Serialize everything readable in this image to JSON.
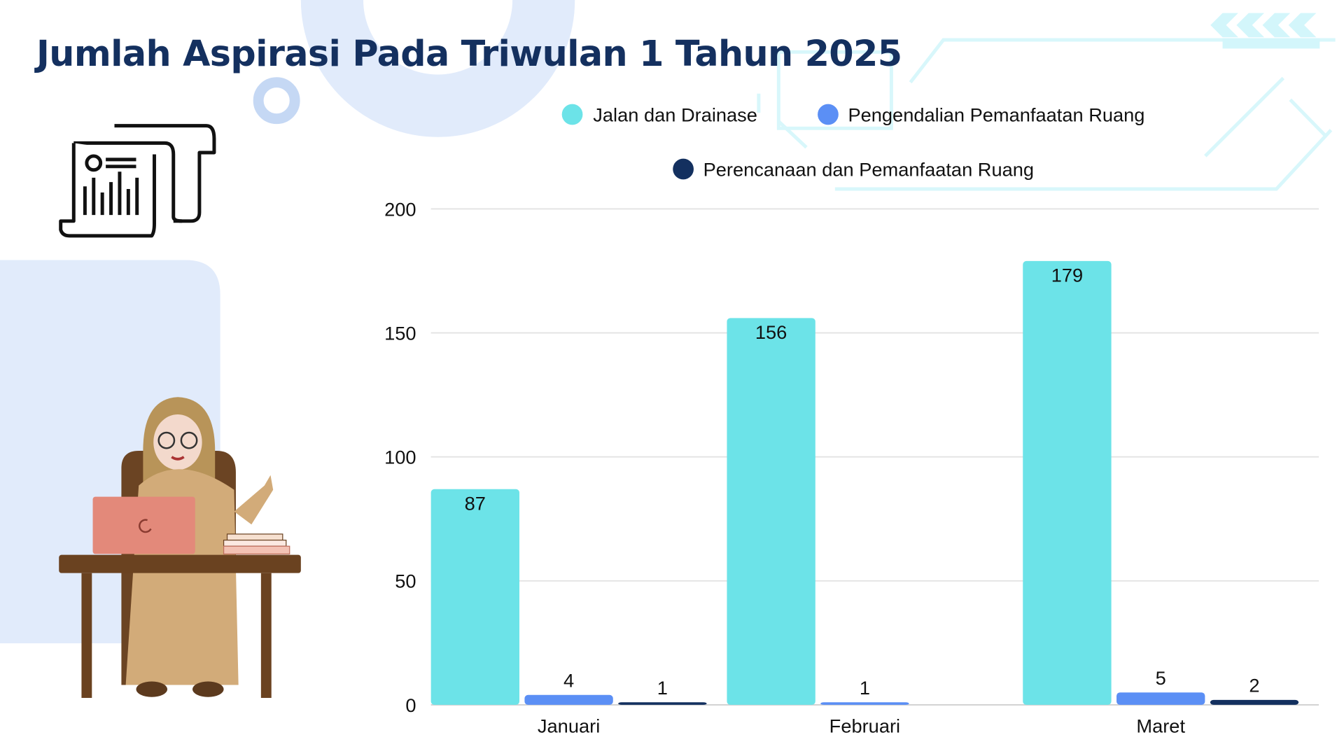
{
  "title": "Jumlah Aspirasi Pada Triwulan 1 Tahun 2025",
  "colors": {
    "title": "#14305f",
    "background_accent": "#e1ebfb"
  },
  "icons": [
    "report-document-icon",
    "teacher-at-desk-illustration"
  ],
  "chart_data": {
    "type": "bar",
    "title": "Jumlah Aspirasi Pada Triwulan 1 Tahun 2025",
    "xlabel": "",
    "ylabel": "",
    "categories": [
      "Januari",
      "Februari",
      "Maret"
    ],
    "series": [
      {
        "name": "Jalan dan Drainase",
        "color": "#6ce3e8",
        "values": [
          87,
          156,
          179
        ],
        "labels": [
          "87",
          "156",
          "179"
        ]
      },
      {
        "name": "Pengendalian Pemanfaatan Ruang",
        "color": "#5b8ff5",
        "values": [
          4,
          1,
          5
        ],
        "labels": [
          "4",
          "1",
          "5"
        ]
      },
      {
        "name": "Perencanaan dan Pemanfaatan Ruang",
        "color": "#13305f",
        "values": [
          1,
          0,
          2
        ],
        "labels": [
          "1",
          "",
          "2"
        ]
      }
    ],
    "ylim": [
      0,
      200
    ],
    "yticks": [
      0,
      50,
      100,
      150,
      200
    ],
    "ytick_labels": [
      "0",
      "50",
      "100",
      "150",
      "200"
    ],
    "grid": true,
    "legend_position": "top"
  }
}
